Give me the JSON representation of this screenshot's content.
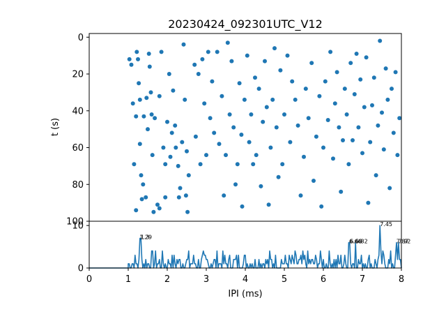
{
  "chart_data": [
    {
      "type": "scatter",
      "title": "20230424_092301UTC_V12",
      "xlabel": "",
      "ylabel": "t (s)",
      "xlim": [
        0,
        8
      ],
      "ylim": [
        100,
        -2
      ],
      "y_inverted": true,
      "y_ticks": [
        0,
        20,
        40,
        60,
        80,
        100
      ],
      "grid": false,
      "color": "#1f77b4",
      "points": [
        [
          1.03,
          12
        ],
        [
          1.08,
          15
        ],
        [
          1.12,
          36
        ],
        [
          1.15,
          69
        ],
        [
          1.2,
          43
        ],
        [
          1.22,
          8
        ],
        [
          1.25,
          12
        ],
        [
          1.27,
          25
        ],
        [
          1.3,
          34
        ],
        [
          1.3,
          58
        ],
        [
          1.33,
          75
        ],
        [
          1.38,
          80
        ],
        [
          1.4,
          43
        ],
        [
          1.45,
          87
        ],
        [
          1.47,
          33
        ],
        [
          1.5,
          50
        ],
        [
          1.53,
          9
        ],
        [
          1.55,
          16
        ],
        [
          1.58,
          30
        ],
        [
          1.6,
          42
        ],
        [
          1.62,
          64
        ],
        [
          1.68,
          44
        ],
        [
          1.75,
          91
        ],
        [
          1.8,
          32
        ],
        [
          1.85,
          8
        ],
        [
          1.9,
          60
        ],
        [
          1.95,
          69
        ],
        [
          2.0,
          46
        ],
        [
          2.05,
          20
        ],
        [
          2.08,
          65
        ],
        [
          2.12,
          52
        ],
        [
          2.15,
          29
        ],
        [
          2.2,
          48
        ],
        [
          2.22,
          60
        ],
        [
          2.28,
          70
        ],
        [
          2.33,
          82
        ],
        [
          2.38,
          57
        ],
        [
          2.42,
          4
        ],
        [
          2.45,
          34
        ],
        [
          2.5,
          62
        ],
        [
          2.52,
          95
        ],
        [
          2.55,
          75
        ],
        [
          1.2,
          94
        ],
        [
          1.35,
          88
        ],
        [
          1.65,
          95
        ],
        [
          1.8,
          93
        ],
        [
          1.95,
          87
        ],
        [
          2.3,
          87
        ],
        [
          2.48,
          86
        ],
        [
          2.7,
          15
        ],
        [
          2.73,
          54
        ],
        [
          2.8,
          20
        ],
        [
          2.85,
          69
        ],
        [
          2.9,
          12
        ],
        [
          2.95,
          36
        ],
        [
          3.0,
          64
        ],
        [
          3.05,
          8
        ],
        [
          3.1,
          44
        ],
        [
          3.15,
          24
        ],
        [
          3.2,
          52
        ],
        [
          3.28,
          8
        ],
        [
          3.33,
          58
        ],
        [
          3.4,
          32
        ],
        [
          3.45,
          86
        ],
        [
          3.5,
          64
        ],
        [
          3.55,
          3
        ],
        [
          3.6,
          42
        ],
        [
          3.65,
          13
        ],
        [
          3.7,
          49
        ],
        [
          3.75,
          80
        ],
        [
          3.8,
          69
        ],
        [
          3.85,
          25
        ],
        [
          3.9,
          53
        ],
        [
          3.92,
          92
        ],
        [
          3.98,
          34
        ],
        [
          4.05,
          10
        ],
        [
          4.1,
          57
        ],
        [
          4.15,
          42
        ],
        [
          4.2,
          69
        ],
        [
          4.25,
          22
        ],
        [
          4.28,
          64
        ],
        [
          4.35,
          28
        ],
        [
          4.4,
          81
        ],
        [
          4.45,
          46
        ],
        [
          4.5,
          13
        ],
        [
          4.55,
          38
        ],
        [
          4.6,
          91
        ],
        [
          4.65,
          60
        ],
        [
          4.7,
          34
        ],
        [
          4.75,
          6
        ],
        [
          4.8,
          49
        ],
        [
          4.85,
          76
        ],
        [
          4.9,
          18
        ],
        [
          4.95,
          69
        ],
        [
          5.0,
          42
        ],
        [
          5.08,
          10
        ],
        [
          5.15,
          57
        ],
        [
          5.2,
          24
        ],
        [
          5.28,
          34
        ],
        [
          5.35,
          48
        ],
        [
          5.42,
          86
        ],
        [
          5.5,
          65
        ],
        [
          5.55,
          28
        ],
        [
          5.62,
          44
        ],
        [
          5.7,
          14
        ],
        [
          5.75,
          78
        ],
        [
          5.82,
          54
        ],
        [
          5.9,
          32
        ],
        [
          5.95,
          92
        ],
        [
          6.0,
          60
        ],
        [
          6.05,
          24
        ],
        [
          6.12,
          45
        ],
        [
          6.18,
          8
        ],
        [
          6.25,
          66
        ],
        [
          6.3,
          36
        ],
        [
          6.35,
          19
        ],
        [
          6.4,
          49
        ],
        [
          6.45,
          84
        ],
        [
          6.5,
          56
        ],
        [
          6.55,
          28
        ],
        [
          6.6,
          42
        ],
        [
          6.65,
          69
        ],
        [
          6.7,
          14
        ],
        [
          6.75,
          56
        ],
        [
          6.8,
          31
        ],
        [
          6.85,
          9
        ],
        [
          6.9,
          49
        ],
        [
          6.95,
          23
        ],
        [
          7.0,
          63
        ],
        [
          7.05,
          38
        ],
        [
          7.1,
          11
        ],
        [
          7.15,
          90
        ],
        [
          7.2,
          57
        ],
        [
          7.25,
          37
        ],
        [
          7.3,
          22
        ],
        [
          7.35,
          75
        ],
        [
          7.4,
          48
        ],
        [
          7.45,
          2
        ],
        [
          7.5,
          41
        ],
        [
          7.55,
          61
        ],
        [
          7.6,
          17
        ],
        [
          7.65,
          34
        ],
        [
          7.7,
          82
        ],
        [
          7.75,
          28
        ],
        [
          7.8,
          52
        ],
        [
          7.85,
          19
        ],
        [
          7.9,
          64
        ],
        [
          7.95,
          44
        ]
      ]
    },
    {
      "type": "line",
      "title": "",
      "xlabel": "IPI (ms)",
      "ylabel": "",
      "xlim": [
        0,
        8
      ],
      "ylim": [
        0,
        11
      ],
      "x_ticks": [
        0,
        1,
        2,
        3,
        4,
        5,
        6,
        7,
        8
      ],
      "y_ticks": [
        0,
        10
      ],
      "grid": false,
      "color": "#1f77b4",
      "flat_until": 1.0,
      "bin_width": 0.025,
      "peaks": [
        {
          "x": 1.29,
          "y": 7,
          "label": "1.29"
        },
        {
          "x": 1.32,
          "y": 7,
          "label": "1.3"
        },
        {
          "x": 6.66,
          "y": 6,
          "label": "6.66"
        },
        {
          "x": 6.68,
          "y": 6,
          "label": "6.68"
        },
        {
          "x": 6.82,
          "y": 6,
          "label": "6.82"
        },
        {
          "x": 7.45,
          "y": 10,
          "label": "7.45"
        },
        {
          "x": 7.87,
          "y": 6,
          "label": "7.87"
        },
        {
          "x": 7.92,
          "y": 6,
          "label": "7.92"
        }
      ]
    }
  ]
}
